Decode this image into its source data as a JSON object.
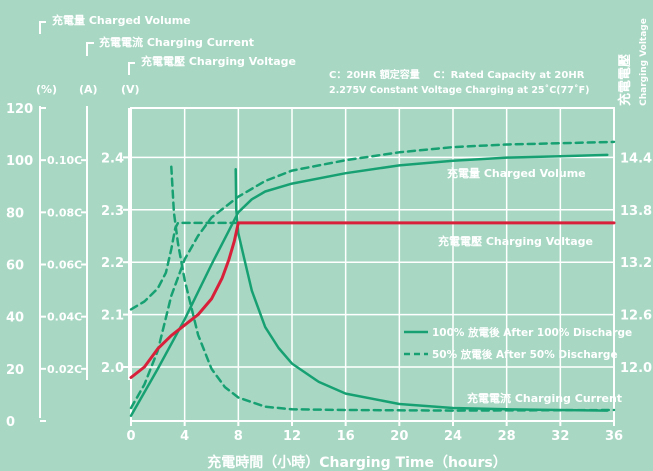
{
  "legend_labels": {
    "volume": "充電量 Charged Volume",
    "current": "充電電流 Charging Current",
    "voltage": "充電電壓 Charging Voltage"
  },
  "units": {
    "percent": "(%)",
    "amps": "(A)",
    "volts": "(V)"
  },
  "note_line1": "C：20HR 額定容量　 C：Rated Capacity at 20HR",
  "note_line2": "2.275V Constant Voltage Charging at 25˚C(77˚F)",
  "right_axis_title_cn": "充電電壓",
  "right_axis_title_en": "Charging Voltage",
  "xlabel": "充電時間（小時）Charging Time（hours）",
  "curve_labels": {
    "volume": "充電量 Charged Volume",
    "voltage": "充電電壓 Charging Voltage",
    "current": "充電電流 Charging Current"
  },
  "line_legend": {
    "full": "100% 放電後 After 100% Discharge",
    "half": "50% 放電後 After 50% Discharge"
  },
  "chart_data": {
    "type": "line",
    "x_range": [
      0,
      36
    ],
    "x_ticks": [
      "0",
      "4",
      "8",
      "12",
      "16",
      "20",
      "24",
      "28",
      "32",
      "36"
    ],
    "axes": {
      "percent": {
        "ticks": [
          "120",
          "100",
          "80",
          "60",
          "40",
          "20",
          "0"
        ],
        "range": [
          0,
          120
        ]
      },
      "amps": {
        "ticks": [
          "0.10C",
          "0.08C",
          "0.06C",
          "0.04C",
          "0.02C"
        ],
        "range": [
          0,
          0.12
        ]
      },
      "volts_left": {
        "ticks": [
          "2.4",
          "2.3",
          "2.2",
          "2.1",
          "2.0"
        ],
        "range": [
          1.9,
          2.45
        ]
      },
      "volts_right": {
        "ticks": [
          "14.4",
          "13.8",
          "13.2",
          "12.6",
          "12.0"
        ],
        "range": [
          11.4,
          14.7
        ]
      }
    },
    "colors": {
      "green": "#17a173",
      "red": "#d8203a",
      "grid": "#ffffff"
    },
    "series": [
      {
        "name": "charged_volume_100",
        "axis": "percent",
        "dash": false,
        "color": "green",
        "points": [
          [
            0,
            2
          ],
          [
            2,
            20
          ],
          [
            4,
            39
          ],
          [
            6,
            60
          ],
          [
            7,
            70
          ],
          [
            8,
            80
          ],
          [
            9,
            85
          ],
          [
            10,
            88
          ],
          [
            12,
            91
          ],
          [
            16,
            95
          ],
          [
            20,
            98
          ],
          [
            24,
            99.8
          ],
          [
            28,
            101
          ],
          [
            32,
            101.5
          ],
          [
            35.5,
            102
          ]
        ]
      },
      {
        "name": "charged_volume_50",
        "axis": "percent",
        "dash": true,
        "color": "green",
        "points": [
          [
            0,
            5
          ],
          [
            1,
            14
          ],
          [
            2,
            27
          ],
          [
            3,
            48
          ],
          [
            4,
            62
          ],
          [
            5,
            71
          ],
          [
            6,
            78
          ],
          [
            8,
            86
          ],
          [
            10,
            92
          ],
          [
            12,
            96
          ],
          [
            16,
            100
          ],
          [
            20,
            103
          ],
          [
            24,
            105
          ],
          [
            28,
            106
          ],
          [
            32,
            106.5
          ],
          [
            36,
            107
          ]
        ]
      },
      {
        "name": "charging_current_100",
        "axis": "amps",
        "dash": false,
        "color": "green",
        "points": [
          [
            7.8,
            0.0965
          ],
          [
            7.85,
            0.081
          ],
          [
            8,
            0.072
          ],
          [
            8.5,
            0.061
          ],
          [
            9,
            0.05
          ],
          [
            10,
            0.036
          ],
          [
            11,
            0.028
          ],
          [
            12,
            0.022
          ],
          [
            14,
            0.015
          ],
          [
            16,
            0.0105
          ],
          [
            20,
            0.0065
          ],
          [
            24,
            0.005
          ],
          [
            28,
            0.0045
          ],
          [
            32,
            0.0042
          ],
          [
            35.5,
            0.004
          ]
        ]
      },
      {
        "name": "charging_current_50",
        "axis": "amps",
        "dash": true,
        "color": "green",
        "points": [
          [
            3,
            0.0975
          ],
          [
            3.2,
            0.08
          ],
          [
            3.5,
            0.068
          ],
          [
            4,
            0.054
          ],
          [
            5,
            0.033
          ],
          [
            6,
            0.02
          ],
          [
            7,
            0.013
          ],
          [
            8,
            0.009
          ],
          [
            10,
            0.0055
          ],
          [
            12,
            0.0045
          ],
          [
            16,
            0.0042
          ],
          [
            24,
            0.004
          ],
          [
            36,
            0.0042
          ]
        ]
      },
      {
        "name": "charging_voltage_100",
        "axis": "volts_left",
        "dash": false,
        "color": "red",
        "points": [
          [
            0,
            1.98
          ],
          [
            1,
            2.0
          ],
          [
            2,
            2.035
          ],
          [
            3,
            2.06
          ],
          [
            4,
            2.08
          ],
          [
            5,
            2.1
          ],
          [
            6,
            2.13
          ],
          [
            6.8,
            2.17
          ],
          [
            7.3,
            2.205
          ],
          [
            7.7,
            2.24
          ],
          [
            8,
            2.275
          ],
          [
            36,
            2.275
          ]
        ]
      },
      {
        "name": "charging_voltage_50",
        "axis": "volts_left",
        "dash": true,
        "color": "green",
        "points": [
          [
            0,
            2.11
          ],
          [
            1,
            2.125
          ],
          [
            2,
            2.15
          ],
          [
            2.6,
            2.18
          ],
          [
            3,
            2.225
          ],
          [
            3.3,
            2.265
          ],
          [
            3.5,
            2.275
          ],
          [
            7.8,
            2.275
          ]
        ]
      }
    ]
  }
}
